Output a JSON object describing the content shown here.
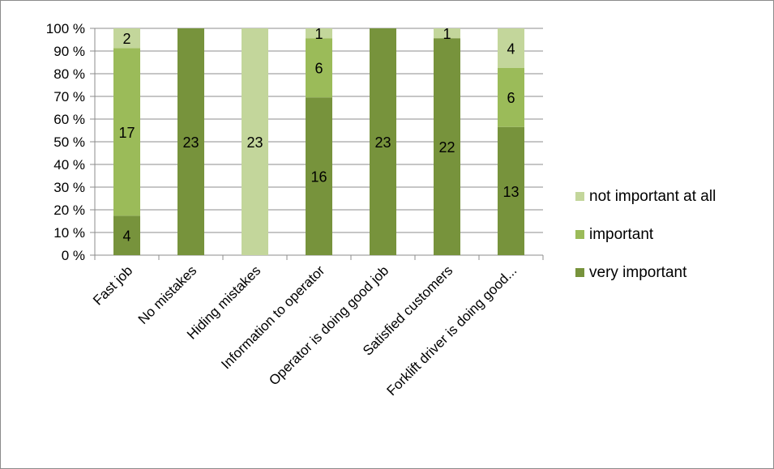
{
  "chart_data": {
    "type": "bar",
    "stacked": true,
    "percent_stacked": true,
    "title": "",
    "xlabel": "",
    "ylabel": "",
    "ylim": [
      0,
      100
    ],
    "yticks": [
      "0 %",
      "10 %",
      "20 %",
      "30 %",
      "40 %",
      "50 %",
      "60 %",
      "70 %",
      "80 %",
      "90 %",
      "100 %"
    ],
    "grid": true,
    "legend_position": "right",
    "categories": [
      "Fast job",
      "No mistakes",
      "Hiding mistakes",
      "Information to operator",
      "Operator is doing good job",
      "Satisfied customers",
      "Forklift driver is doing good..."
    ],
    "series": [
      {
        "name": "very important",
        "color": "#77933c",
        "values": [
          4,
          23,
          0,
          16,
          23,
          22,
          13
        ]
      },
      {
        "name": "important",
        "color": "#9bbb59",
        "values": [
          17,
          0,
          0,
          6,
          0,
          0,
          6
        ]
      },
      {
        "name": "not important at all",
        "color": "#c3d69b",
        "values": [
          2,
          0,
          23,
          1,
          0,
          1,
          4
        ]
      }
    ],
    "legend_order": [
      "not important at all",
      "important",
      "very important"
    ]
  }
}
